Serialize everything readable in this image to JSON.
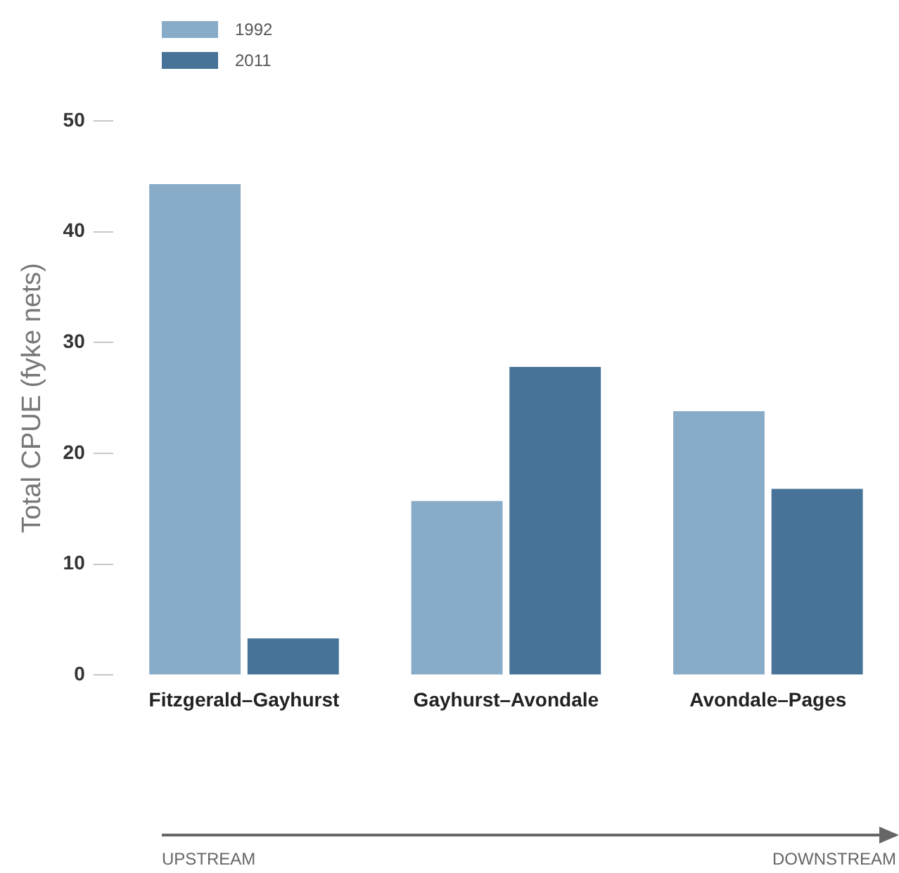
{
  "chart_data": {
    "type": "bar",
    "categories": [
      "Fitzgerald–Gayhurst",
      "Gayhurst–Avondale",
      "Avondale–Pages"
    ],
    "series": [
      {
        "name": "1992",
        "color": "#88abc8",
        "values": [
          44.3,
          15.7,
          23.8
        ]
      },
      {
        "name": "2011",
        "color": "#467397",
        "values": [
          3.3,
          27.8,
          16.8
        ]
      }
    ],
    "ylabel": "Total CPUE (fyke nets)",
    "ylim": [
      0,
      50
    ],
    "yticks": [
      0,
      10,
      20,
      30,
      40,
      50
    ],
    "grid": false,
    "legend": "top left",
    "annotations": [
      "UPSTREAM",
      "DOWNSTREAM"
    ]
  }
}
